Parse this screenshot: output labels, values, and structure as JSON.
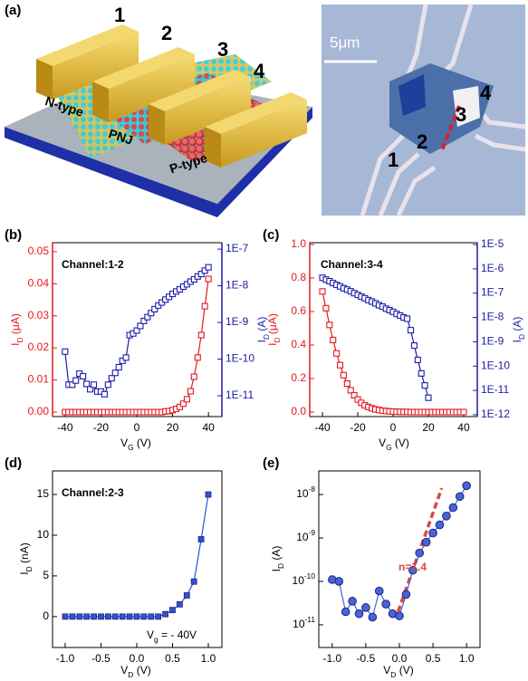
{
  "panel_a": {
    "label": "(a)",
    "electrodes": [
      "1",
      "2",
      "3",
      "4"
    ],
    "regions": [
      "N-type",
      "PNJ",
      "P-type"
    ],
    "scale_bar": "5μm",
    "micrograph_labels": [
      "1",
      "2",
      "3",
      "4"
    ]
  },
  "chart_data": [
    {
      "type": "line",
      "panel_label": "(b)",
      "title": "Channel:1-2",
      "xlabel": {
        "main": "V",
        "sub": "G",
        "rest": " (V)"
      },
      "ylabel": {
        "main": "I",
        "sub": "D",
        "rest": " (μA)"
      },
      "ycolor": "#e3191f",
      "y2label": {
        "main": "I",
        "sub": "D",
        "rest": " (A)"
      },
      "y2color": "#1c1ca8",
      "xlim": [
        -47,
        47.5
      ],
      "xticks": [
        -40,
        -20,
        0,
        20,
        40
      ],
      "ylim": [
        -0.0014,
        0.0528
      ],
      "yticks": [
        {
          "value": 0,
          "label": "0.00"
        },
        {
          "value": 0.01,
          "label": "0.01"
        },
        {
          "value": 0.02,
          "label": "0.02"
        },
        {
          "value": 0.03,
          "label": "0.03"
        },
        {
          "value": 0.04,
          "label": "0.04"
        },
        {
          "value": 0.05,
          "label": "0.05"
        }
      ],
      "y2scale": "log",
      "y2lim": [
        2.7e-12,
        1.5e-07
      ],
      "y2ticks": [
        {
          "value": 1e-11,
          "label": "1E-11"
        },
        {
          "value": 1e-10,
          "label": "1E-10"
        },
        {
          "value": 1e-09,
          "label": "1E-9"
        },
        {
          "value": 1e-08,
          "label": "1E-8"
        },
        {
          "value": 1e-07,
          "label": "1E-7"
        }
      ],
      "series": [
        {
          "color": "#e3191f",
          "marker": "square-open",
          "axis": "y",
          "x": [
            -40,
            -38,
            -36,
            -34,
            -32,
            -30,
            -28,
            -26,
            -24,
            -22,
            -20,
            -18,
            -16,
            -14,
            -12,
            -10,
            -8,
            -6,
            -4,
            -2,
            0,
            2,
            4,
            6,
            8,
            10,
            12,
            14,
            16,
            18,
            20,
            22,
            24,
            26,
            28,
            30,
            32,
            34,
            36,
            38,
            40
          ],
          "values": [
            0,
            0,
            0,
            0,
            0,
            0,
            0,
            0,
            0,
            0,
            0,
            0,
            0,
            0,
            0,
            0,
            0,
            0,
            0,
            0,
            0,
            0,
            0,
            0,
            0,
            0,
            0,
            0,
            0.0002,
            0.0003,
            0.0006,
            0.001,
            0.0016,
            0.0026,
            0.004,
            0.0065,
            0.011,
            0.017,
            0.024,
            0.033,
            0.0415
          ]
        },
        {
          "color": "#1c1ca8",
          "marker": "square-open",
          "axis": "y2",
          "x": [
            -40,
            -38,
            -36,
            -34,
            -32,
            -30,
            -28,
            -26,
            -24,
            -22,
            -20,
            -18,
            -16,
            -14,
            -12,
            -10,
            -8,
            -6,
            -4,
            -2,
            0,
            2,
            4,
            6,
            8,
            10,
            12,
            14,
            16,
            18,
            20,
            22,
            24,
            26,
            28,
            30,
            32,
            34,
            36,
            38,
            40
          ],
          "values": [
            1.6e-10,
            2e-11,
            2e-11,
            2.6e-11,
            4e-11,
            3.4e-11,
            2.1e-11,
            1.5e-11,
            2e-11,
            1.3e-11,
            1.3e-11,
            1.1e-11,
            2e-11,
            3e-11,
            4.2e-11,
            6e-11,
            9e-11,
            1.1e-10,
            4.5e-10,
            5e-10,
            6e-10,
            8e-10,
            1.1e-09,
            1.4e-09,
            1.8e-09,
            2.3e-09,
            2.9e-09,
            3.5e-09,
            4.2e-09,
            5e-09,
            6e-09,
            7e-09,
            8e-09,
            9.5e-09,
            1.1e-08,
            1.3e-08,
            1.5e-08,
            1.8e-08,
            2.1e-08,
            2.6e-08,
            3.2e-08
          ]
        }
      ]
    },
    {
      "type": "line",
      "panel_label": "(c)",
      "title": "Channel:3-4",
      "xlabel": {
        "main": "V",
        "sub": "G",
        "rest": " (V)"
      },
      "ylabel": {
        "main": "I",
        "sub": "D",
        "rest": " (μA)"
      },
      "ycolor": "#e3191f",
      "y2label": {
        "main": "I",
        "sub": "D",
        "rest": " (A)"
      },
      "y2color": "#1c1ca8",
      "xlim": [
        -47.2,
        47.7
      ],
      "xticks": [
        -40,
        -20,
        0,
        20,
        40
      ],
      "ylim": [
        -0.027,
        1.011
      ],
      "yticks": [
        {
          "value": 0,
          "label": "0.0"
        },
        {
          "value": 0.2,
          "label": "0.2"
        },
        {
          "value": 0.4,
          "label": "0.4"
        },
        {
          "value": 0.6,
          "label": "0.6"
        },
        {
          "value": 0.8,
          "label": "0.8"
        },
        {
          "value": 1,
          "label": "1.0"
        }
      ],
      "y2scale": "log",
      "y2lim": [
        8.4e-13,
        1.19e-05
      ],
      "y2ticks": [
        {
          "value": 1e-12,
          "label": "1E-12"
        },
        {
          "value": 1e-11,
          "label": "1E-11"
        },
        {
          "value": 1e-10,
          "label": "1E-10"
        },
        {
          "value": 1e-09,
          "label": "1E-9"
        },
        {
          "value": 1e-08,
          "label": "1E-8"
        },
        {
          "value": 1e-07,
          "label": "1E-7"
        },
        {
          "value": 1e-06,
          "label": "1E-6"
        },
        {
          "value": 1e-05,
          "label": "1E-5"
        }
      ],
      "series": [
        {
          "color": "#e3191f",
          "marker": "square-open",
          "axis": "y",
          "x": [
            -40,
            -38,
            -36,
            -34,
            -32,
            -30,
            -28,
            -26,
            -24,
            -22,
            -20,
            -18,
            -16,
            -14,
            -12,
            -10,
            -8,
            -6,
            -4,
            -2,
            0,
            2,
            4,
            6,
            8,
            10,
            12,
            14,
            16,
            18,
            20,
            22,
            24,
            26,
            28,
            30,
            32,
            34,
            36,
            38,
            40
          ],
          "values": [
            0.72,
            0.62,
            0.52,
            0.43,
            0.35,
            0.28,
            0.22,
            0.17,
            0.13,
            0.1,
            0.075,
            0.055,
            0.04,
            0.03,
            0.022,
            0.016,
            0.012,
            0.008,
            0.006,
            0.004,
            0.003,
            0.002,
            0.0015,
            0.001,
            0.001,
            0,
            0,
            0,
            0,
            0,
            0,
            0,
            0,
            0,
            0,
            0,
            0,
            0,
            0,
            0,
            0
          ]
        },
        {
          "color": "#1c1ca8",
          "marker": "square-open",
          "axis": "y2",
          "x": [
            -40,
            -38,
            -36,
            -34,
            -32,
            -30,
            -28,
            -26,
            -24,
            -22,
            -20,
            -18,
            -16,
            -14,
            -12,
            -10,
            -8,
            -6,
            -4,
            -2,
            0,
            2,
            4,
            6,
            8,
            10,
            12,
            14,
            16,
            18,
            20
          ],
          "values": [
            4.3e-07,
            3.6e-07,
            3.1e-07,
            2.6e-07,
            2.2e-07,
            1.9e-07,
            1.6e-07,
            1.4e-07,
            1.2e-07,
            1e-07,
            8.5e-08,
            7.2e-08,
            6.2e-08,
            5.2e-08,
            4.5e-08,
            3.8e-08,
            3.2e-08,
            2.8e-08,
            2.3e-08,
            2e-08,
            1.7e-08,
            1.4e-08,
            1.2e-08,
            1e-08,
            8.9e-09,
            3e-09,
            7e-10,
            1.8e-10,
            5e-11,
            1.6e-11,
            5e-12
          ]
        }
      ]
    },
    {
      "type": "line",
      "panel_label": "(d)",
      "title": "Channel:2-3",
      "xlabel": {
        "main": "V",
        "sub": "D",
        "rest": " (V)"
      },
      "ylabel": {
        "main": "I",
        "sub": "D",
        "rest": " (nA)"
      },
      "annotation": {
        "main": "V",
        "sub": "g",
        "rest": " = - 40V"
      },
      "xlim": [
        -1.177,
        1.19
      ],
      "xticks": [
        {
          "value": -1,
          "label": "-1.0"
        },
        {
          "value": -0.5,
          "label": "-0.5"
        },
        {
          "value": 0,
          "label": "0.0"
        },
        {
          "value": 0.5,
          "label": "0.5"
        },
        {
          "value": 1,
          "label": "1.0"
        }
      ],
      "ylim": [
        -3.8,
        17.9
      ],
      "yticks": [
        0,
        5,
        10,
        15
      ],
      "series": [
        {
          "color": "#3352d0",
          "marker": "square-filled",
          "axis": "y",
          "x": [
            -1.0,
            -0.9,
            -0.8,
            -0.7,
            -0.6,
            -0.5,
            -0.4,
            -0.3,
            -0.2,
            -0.1,
            0.0,
            0.1,
            0.2,
            0.3,
            0.4,
            0.5,
            0.6,
            0.7,
            0.8,
            0.9,
            1.0
          ],
          "values": [
            0,
            0,
            0,
            0,
            0,
            0,
            0,
            0,
            0,
            0,
            0,
            0,
            0,
            0,
            0.3,
            0.8,
            1.5,
            2.6,
            4.3,
            9.5,
            15
          ]
        }
      ]
    },
    {
      "type": "line",
      "panel_label": "(e)",
      "xlabel": {
        "main": "V",
        "sub": "D",
        "rest": " (V)"
      },
      "ylabel": {
        "main": "I",
        "sub": "D",
        "rest": " (A)"
      },
      "annotation": {
        "main": "n=1.4"
      },
      "annotation_color": "#d9473f",
      "xlim": [
        -1.2,
        1.2
      ],
      "xticks": [
        {
          "value": -1,
          "label": "-1.0"
        },
        {
          "value": -0.5,
          "label": "-0.5"
        },
        {
          "value": 0,
          "label": "0.0"
        },
        {
          "value": 0.5,
          "label": "0.5"
        },
        {
          "value": 1,
          "label": "1.0"
        }
      ],
      "yscale": "log",
      "ylim": [
        3e-12,
        3.5e-08
      ],
      "yticks": [
        {
          "value": 1e-11,
          "label": "10",
          "exponent": "-11"
        },
        {
          "value": 1e-10,
          "label": "10",
          "exponent": "-10"
        },
        {
          "value": 1e-09,
          "label": "10",
          "exponent": "-9"
        },
        {
          "value": 1e-08,
          "label": "10",
          "exponent": "-8"
        }
      ],
      "fit": {
        "color": "#d9473f",
        "x": [
          -0.02,
          0.63
        ],
        "values": [
          2e-11,
          1.4e-08
        ]
      },
      "series": [
        {
          "color": "#4a63d8",
          "marker": "circle-filled",
          "axis": "y",
          "x": [
            -1.0,
            -0.9,
            -0.8,
            -0.7,
            -0.6,
            -0.5,
            -0.4,
            -0.3,
            -0.2,
            -0.1,
            0.0,
            0.1,
            0.2,
            0.3,
            0.4,
            0.5,
            0.6,
            0.7,
            0.8,
            0.9,
            1.0
          ],
          "values": [
            1.1e-10,
            1e-10,
            2e-11,
            3.5e-11,
            1.8e-11,
            2.5e-11,
            1.5e-11,
            6e-11,
            3e-11,
            1.8e-11,
            1.6e-11,
            5e-11,
            1.8e-10,
            4.5e-10,
            8e-10,
            1.3e-09,
            2e-09,
            3.2e-09,
            5e-09,
            9e-09,
            1.6e-08
          ]
        }
      ]
    }
  ]
}
